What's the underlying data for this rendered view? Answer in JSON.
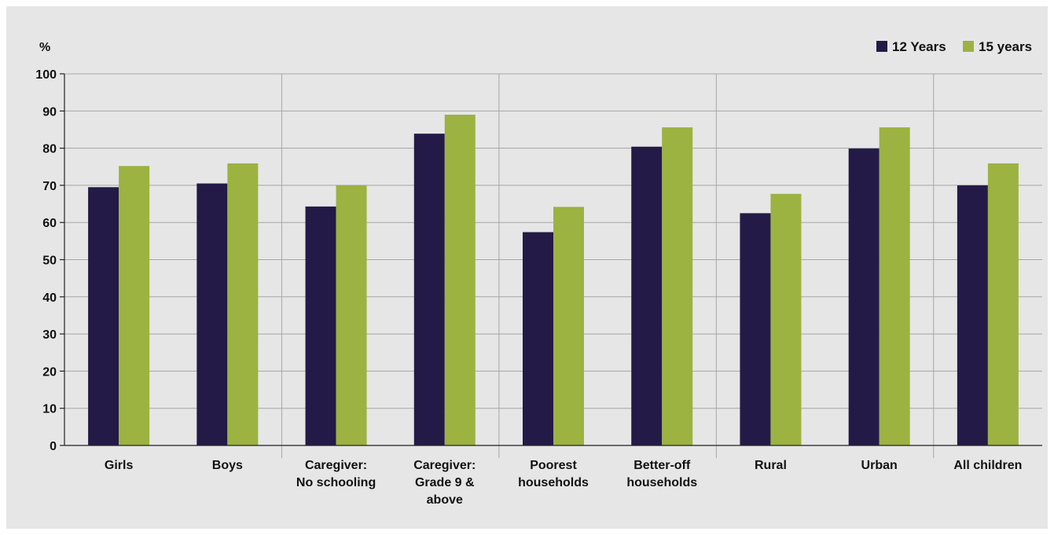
{
  "chart_data": {
    "type": "bar",
    "ylabel": "%",
    "ylim": [
      0,
      100
    ],
    "yticks": [
      "0",
      "10",
      "20",
      "30",
      "40",
      "50",
      "60",
      "70",
      "80",
      "90",
      "100"
    ],
    "grid": true,
    "legend_position": "top-right",
    "categories": [
      [
        "Girls"
      ],
      [
        "Boys"
      ],
      [
        "Caregiver:",
        "No schooling"
      ],
      [
        "Caregiver:",
        "Grade 9 &",
        "above"
      ],
      [
        "Poorest",
        "households"
      ],
      [
        "Better-off",
        "households"
      ],
      [
        "Rural"
      ],
      [
        "Urban"
      ],
      [
        "All children"
      ]
    ],
    "group_separators_after": [
      1,
      3,
      5,
      7
    ],
    "series": [
      {
        "name": "12 Years",
        "color": "#241a47",
        "values": [
          69.5,
          70.5,
          64.3,
          83.9,
          57.4,
          80.4,
          62.5,
          79.9,
          70
        ]
      },
      {
        "name": "15 years",
        "color": "#9cb241",
        "values": [
          75.2,
          75.9,
          70,
          89,
          64.2,
          85.6,
          67.7,
          85.6,
          75.9
        ]
      }
    ]
  }
}
